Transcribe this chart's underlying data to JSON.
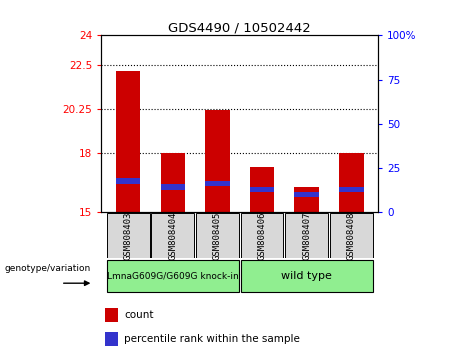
{
  "title": "GDS4490 / 10502442",
  "samples": [
    "GSM808403",
    "GSM808404",
    "GSM808405",
    "GSM808406",
    "GSM808407",
    "GSM808408"
  ],
  "baseline": 15,
  "red_tops": [
    22.2,
    18.0,
    20.2,
    17.3,
    16.3,
    18.0
  ],
  "blue_bottoms": [
    16.45,
    16.15,
    16.35,
    16.05,
    15.78,
    16.05
  ],
  "blue_tops": [
    16.75,
    16.45,
    16.6,
    16.3,
    16.05,
    16.3
  ],
  "ylim_left": [
    15,
    24
  ],
  "ylim_right": [
    0,
    100
  ],
  "yticks_left": [
    15,
    18,
    20.25,
    22.5,
    24
  ],
  "yticks_right": [
    0,
    25,
    50,
    75,
    100
  ],
  "ytick_labels_left": [
    "15",
    "18",
    "20.25",
    "22.5",
    "24"
  ],
  "ytick_labels_right": [
    "0",
    "25",
    "50",
    "75",
    "100%"
  ],
  "group1_label": "LmnaG609G/G609G knock-in",
  "group2_label": "wild type",
  "group1_color": "#90EE90",
  "group2_color": "#90EE90",
  "bar_width": 0.55,
  "red_color": "#CC0000",
  "blue_color": "#3333CC",
  "legend_count": "count",
  "legend_percentile": "percentile rank within the sample",
  "genotype_label": "genotype/variation",
  "bg_color": "#d8d8d8"
}
